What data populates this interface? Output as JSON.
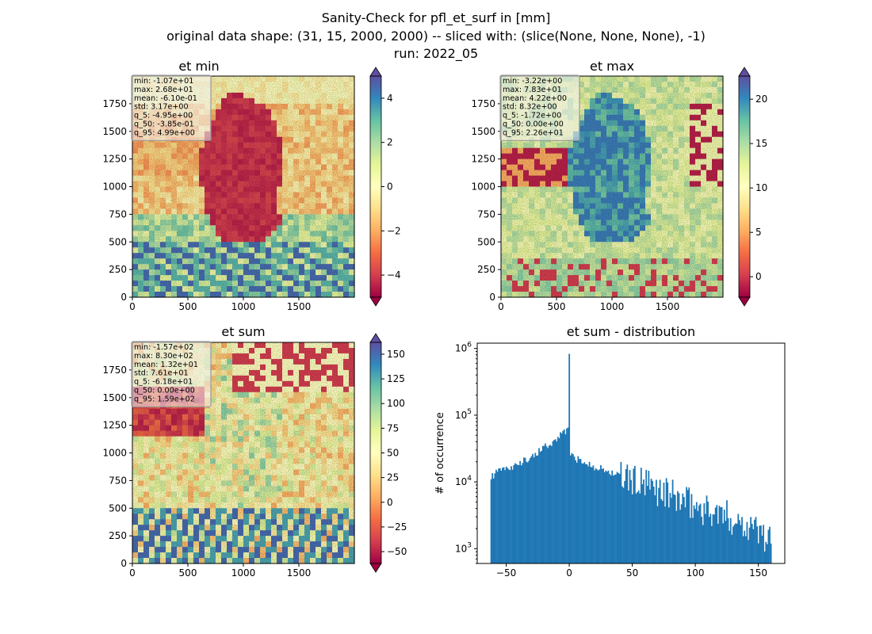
{
  "figure": {
    "title_lines": [
      "Sanity-Check for pfl_et_surf in [mm]",
      "original data shape: (31, 15, 2000, 2000) -- sliced with: (slice(None, None, None), -1)",
      "run: 2022_05"
    ]
  },
  "chart_data": [
    {
      "type": "heatmap",
      "title": "et min",
      "x_ticks": [
        0,
        500,
        1000,
        1500
      ],
      "y_ticks": [
        0,
        250,
        500,
        750,
        1000,
        1250,
        1500,
        1750
      ],
      "xlim": [
        0,
        2000
      ],
      "ylim": [
        0,
        2000
      ],
      "colormap": "Spectral",
      "colorbar": {
        "vmin": -5.0,
        "vmax": 5.0,
        "ticks": [
          -4,
          -2,
          0,
          2,
          4
        ],
        "extend": "both"
      },
      "stats": [
        "min: -1.07e+01",
        "max: 2.68e+01",
        "mean: -6.10e-01",
        "std: 3.17e+00",
        "q_5: -4.95e+00",
        "q_50: -3.85e-01",
        "q_95: 4.99e+00"
      ]
    },
    {
      "type": "heatmap",
      "title": "et max",
      "x_ticks": [
        0,
        500,
        1000,
        1500
      ],
      "y_ticks": [
        0,
        250,
        500,
        750,
        1000,
        1250,
        1500,
        1750
      ],
      "xlim": [
        0,
        2000
      ],
      "ylim": [
        0,
        2000
      ],
      "colormap": "Spectral",
      "colorbar": {
        "vmin": -2.3,
        "vmax": 22.6,
        "ticks": [
          0,
          5,
          10,
          15,
          20
        ],
        "extend": "both"
      },
      "stats": [
        "min: -3.22e+00",
        "max: 7.83e+01",
        "mean: 4.22e+00",
        "std: 8.32e+00",
        "q_5: -1.72e+00",
        "q_50: 0.00e+00",
        "q_95: 2.26e+01"
      ]
    },
    {
      "type": "heatmap",
      "title": "et sum",
      "x_ticks": [
        0,
        500,
        1000,
        1500
      ],
      "y_ticks": [
        0,
        250,
        500,
        750,
        1000,
        1250,
        1500,
        1750
      ],
      "xlim": [
        0,
        2000
      ],
      "ylim": [
        0,
        2000
      ],
      "colormap": "Spectral",
      "colorbar": {
        "vmin": -62,
        "vmax": 162,
        "ticks": [
          -50,
          -25,
          0,
          25,
          50,
          75,
          100,
          125,
          150
        ],
        "extend": "both"
      },
      "stats": [
        "min: -1.57e+02",
        "max: 8.30e+02",
        "mean: 1.32e+01",
        "std: 7.61e+01",
        "q_5: -6.18e+01",
        "q_50: 0.00e+00",
        "q_95: 1.59e+02"
      ]
    },
    {
      "type": "bar",
      "title": "et sum - distribution",
      "ylabel": "# of occurrence",
      "yscale": "log",
      "xlim": [
        -73,
        171
      ],
      "ylim": [
        600,
        1200000
      ],
      "x_ticks": [
        -50,
        0,
        50,
        100,
        150
      ],
      "y_ticks": [
        1000,
        10000,
        100000,
        1000000
      ],
      "y_tick_labels": [
        [
          "10",
          "3"
        ],
        [
          "10",
          "4"
        ],
        [
          "10",
          "5"
        ],
        [
          "10",
          "6"
        ]
      ],
      "color": "#1f77b4",
      "bin_width": 1,
      "histogram_anchors": [
        [
          -62,
          12000
        ],
        [
          -55,
          14500
        ],
        [
          -45,
          17000
        ],
        [
          -35,
          21000
        ],
        [
          -25,
          27000
        ],
        [
          -15,
          38000
        ],
        [
          -9,
          46000
        ],
        [
          -3,
          55000
        ],
        [
          -1,
          58000
        ],
        [
          0,
          830000
        ],
        [
          1,
          26000
        ],
        [
          5,
          22000
        ],
        [
          15,
          18500
        ],
        [
          30,
          14500
        ],
        [
          50,
          10500
        ],
        [
          75,
          7000
        ],
        [
          100,
          4300
        ],
        [
          125,
          3000
        ],
        [
          145,
          2200
        ],
        [
          160,
          1300
        ]
      ]
    }
  ]
}
